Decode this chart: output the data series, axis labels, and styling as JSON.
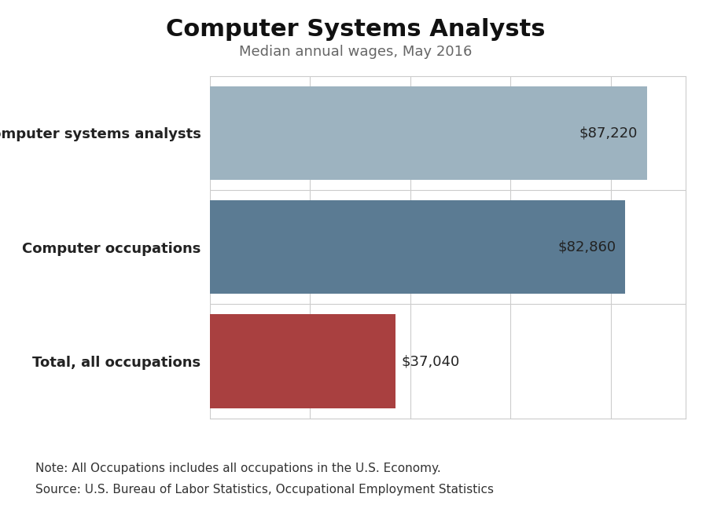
{
  "title": "Computer Systems Analysts",
  "subtitle": "Median annual wages, May 2016",
  "categories": [
    "Total, all occupations",
    "Computer occupations",
    "Computer systems analysts"
  ],
  "values": [
    37040,
    82860,
    87220
  ],
  "labels": [
    "$37,040",
    "$82,860",
    "$87,220"
  ],
  "bar_colors": [
    "#a94040",
    "#5b7b93",
    "#9db3c0"
  ],
  "background_color": "#ffffff",
  "xlim": [
    0,
    95000
  ],
  "note_line1": "Note: All Occupations includes all occupations in the U.S. Economy.",
  "note_line2": "Source: U.S. Bureau of Labor Statistics, Occupational Employment Statistics",
  "grid_color": "#cccccc",
  "title_fontsize": 22,
  "subtitle_fontsize": 13,
  "label_fontsize": 13,
  "ytick_fontsize": 13,
  "note_fontsize": 11
}
